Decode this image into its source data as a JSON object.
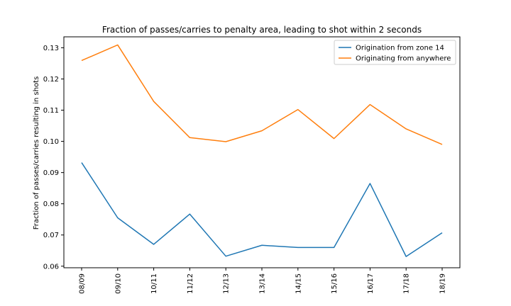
{
  "chart_data": {
    "type": "line",
    "title": "Fraction of passes/carries to penalty area, leading to shot within 2 seconds",
    "xlabel": "",
    "ylabel": "Fraction of passes/carries resulting in shots",
    "categories": [
      "08/09",
      "09/10",
      "10/11",
      "11/12",
      "12/13",
      "13/14",
      "14/15",
      "15/16",
      "16/17",
      "17/18",
      "18/19"
    ],
    "series": [
      {
        "name": "Origination from zone 14",
        "color": "#1f77b4",
        "values": [
          0.0932,
          0.0755,
          0.067,
          0.0767,
          0.0632,
          0.0667,
          0.066,
          0.066,
          0.0865,
          0.0631,
          0.0707
        ]
      },
      {
        "name": "Originating from anywhere",
        "color": "#ff7f0e",
        "values": [
          0.1259,
          0.1309,
          0.1128,
          0.1012,
          0.0999,
          0.1034,
          0.1102,
          0.1009,
          0.1118,
          0.104,
          0.099
        ]
      }
    ],
    "yticks": [
      "0.06",
      "0.07",
      "0.08",
      "0.09",
      "0.10",
      "0.11",
      "0.12",
      "0.13"
    ],
    "ylim": [
      0.0595,
      0.1335
    ],
    "grid": false,
    "legend_position": "top-right"
  }
}
